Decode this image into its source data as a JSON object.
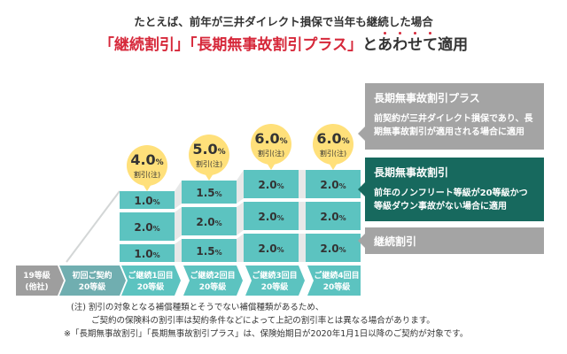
{
  "header": {
    "line1": "たとえば、前年が三井ダイレクト損保で当年も継続した場合",
    "line2_red": "「継続割引」「長期無事故割引プラス」",
    "line2_plain": "と",
    "line2_emph": [
      "あ",
      "わ",
      "せ",
      "て"
    ],
    "line2_tail": "適用"
  },
  "chart_data": {
    "type": "bar",
    "stacked": true,
    "categories": [
      {
        "line1": "19等級",
        "line2": "(他社)"
      },
      {
        "line1": "初回ご契約",
        "line2": "20等級"
      },
      {
        "line1": "ご継続1回目",
        "line2": "20等級"
      },
      {
        "line1": "ご継続2回目",
        "line2": "20等級"
      },
      {
        "line1": "ご継続3回目",
        "line2": "20等級"
      },
      {
        "line1": "ご継続4回目",
        "line2": "20等級"
      }
    ],
    "series": [
      {
        "name": "継続割引",
        "values": [
          null,
          null,
          1.0,
          1.5,
          2.0,
          2.0
        ]
      },
      {
        "name": "長期無事故割引",
        "values": [
          null,
          null,
          2.0,
          2.0,
          2.0,
          2.0
        ]
      },
      {
        "name": "長期無事故割引プラス",
        "values": [
          null,
          null,
          1.0,
          1.5,
          2.0,
          2.0
        ]
      }
    ],
    "segment_labels": [
      [
        null,
        null,
        null
      ],
      [
        null,
        null,
        null
      ],
      [
        "1.0%",
        "2.0%",
        "1.0%"
      ],
      [
        "1.5%",
        "2.0%",
        "1.5%"
      ],
      [
        "2.0%",
        "2.0%",
        "2.0%"
      ],
      [
        "2.0%",
        "2.0%",
        "2.0%"
      ]
    ],
    "totals": [
      null,
      null,
      4.0,
      5.0,
      6.0,
      6.0
    ],
    "total_value_labels": [
      null,
      null,
      "4.0%",
      "5.0%",
      "6.0%",
      "6.0%"
    ],
    "total_caption": "割引(注)",
    "colors": {
      "bar": "#5cc3c0",
      "axis_first": "#9e9e9e",
      "axis_second": "#70aeb0",
      "axis_rest": "#5cc3c0",
      "bubble": "#ffe07a",
      "connector": "#d3d6d6"
    }
  },
  "legend": {
    "plus": {
      "title": "長期無事故割引プラス",
      "desc": "前契約が三井ダイレクト損保であり、長期無事故割引が適用される場合に適用",
      "color": "#a4a4a4"
    },
    "long": {
      "title": "長期無事故割引",
      "desc": "前年のノンフリート等級が20等級かつ等級ダウン事故がない場合に適用",
      "color": "#17695e"
    },
    "cont": {
      "title": "継続割引",
      "color": "#a4a4a4"
    }
  },
  "notes": {
    "line1": "(注) 割引の対象となる補償種類とそうでない補償種類があるため、",
    "line2": "ご契約の保険料の割引率は契約条件などによって上記の割引率とは異なる場合があります。",
    "line3": "※「長期無事故割引」「長期無事故割引プラス」は、保険始期日が2020年1月1日以降のご契約が対象です。"
  }
}
